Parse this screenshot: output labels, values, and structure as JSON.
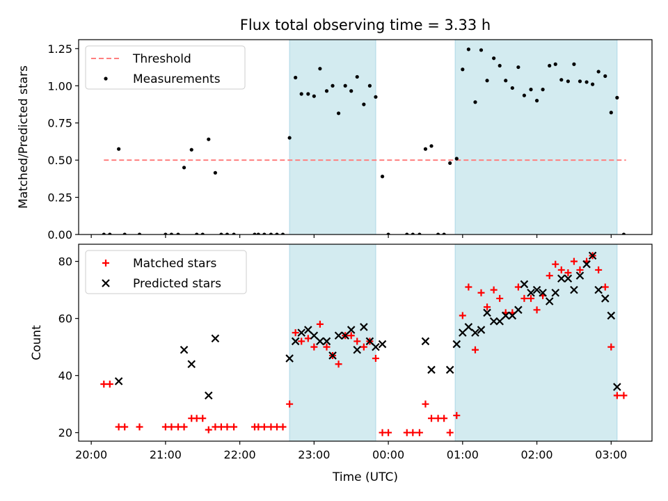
{
  "title": "Flux total observing time = 3.33 h",
  "chart_data": {
    "type": "scatter",
    "title": "Flux total observing time = 3.33 h",
    "xlabel": "Time (UTC)",
    "x_unit": "hours from 20:00 UTC (ticks wrap past midnight)",
    "xlim": [
      -0.17,
      7.55
    ],
    "xticks": [
      {
        "h": 0,
        "label": "20:00"
      },
      {
        "h": 1,
        "label": "21:00"
      },
      {
        "h": 2,
        "label": "22:00"
      },
      {
        "h": 3,
        "label": "23:00"
      },
      {
        "h": 4,
        "label": "00:00"
      },
      {
        "h": 5,
        "label": "01:00"
      },
      {
        "h": 6,
        "label": "02:00"
      },
      {
        "h": 7,
        "label": "03:00"
      }
    ],
    "shaded_intervals": [
      [
        2.67,
        3.83
      ],
      [
        4.9,
        7.08
      ]
    ],
    "shade_color": "#d3ebf0",
    "panels": [
      {
        "ylabel": "Matched/Predicted stars",
        "ylim": [
          0,
          1.31
        ],
        "yticks": [
          {
            "v": 0,
            "label": "0.00"
          },
          {
            "v": 0.25,
            "label": "0.25"
          },
          {
            "v": 0.5,
            "label": "0.50"
          },
          {
            "v": 0.75,
            "label": "0.75"
          },
          {
            "v": 1.0,
            "label": "1.00"
          },
          {
            "v": 1.25,
            "label": "1.25"
          }
        ],
        "legend": {
          "position": "upper-left",
          "entries": [
            "Threshold",
            "Measurements"
          ]
        },
        "threshold": {
          "name": "Threshold",
          "y": 0.5,
          "x": [
            0.17,
            7.2
          ],
          "color": "#ff7f7f"
        },
        "series": [
          {
            "name": "Measurements",
            "marker": "dot",
            "color": "#000000",
            "points": [
              [
                0.17,
                0.0
              ],
              [
                0.25,
                0.0
              ],
              [
                0.37,
                0.575
              ],
              [
                0.45,
                0.0
              ],
              [
                0.65,
                0.0
              ],
              [
                1.0,
                0.0
              ],
              [
                1.08,
                0.0
              ],
              [
                1.17,
                0.0
              ],
              [
                1.25,
                0.45
              ],
              [
                1.35,
                0.57
              ],
              [
                1.42,
                0.0
              ],
              [
                1.5,
                0.0
              ],
              [
                1.58,
                0.64
              ],
              [
                1.67,
                0.415
              ],
              [
                1.75,
                0.0
              ],
              [
                1.83,
                0.0
              ],
              [
                1.92,
                0.0
              ],
              [
                2.2,
                0.0
              ],
              [
                2.25,
                0.0
              ],
              [
                2.33,
                0.0
              ],
              [
                2.42,
                0.0
              ],
              [
                2.5,
                0.0
              ],
              [
                2.58,
                0.0
              ],
              [
                2.67,
                0.65
              ],
              [
                2.75,
                1.055
              ],
              [
                2.83,
                0.945
              ],
              [
                2.92,
                0.945
              ],
              [
                3.0,
                0.93
              ],
              [
                3.08,
                1.115
              ],
              [
                3.17,
                0.965
              ],
              [
                3.25,
                1.0
              ],
              [
                3.33,
                0.815
              ],
              [
                3.42,
                1.0
              ],
              [
                3.5,
                0.965
              ],
              [
                3.58,
                1.06
              ],
              [
                3.67,
                0.875
              ],
              [
                3.75,
                1.0
              ],
              [
                3.83,
                0.925
              ],
              [
                3.92,
                0.39
              ],
              [
                4.0,
                0.0
              ],
              [
                4.25,
                0.0
              ],
              [
                4.33,
                0.0
              ],
              [
                4.42,
                0.0
              ],
              [
                4.5,
                0.575
              ],
              [
                4.58,
                0.595
              ],
              [
                4.67,
                0.0
              ],
              [
                4.75,
                0.0
              ],
              [
                4.83,
                0.48
              ],
              [
                4.92,
                0.51
              ],
              [
                5.0,
                1.11
              ],
              [
                5.08,
                1.245
              ],
              [
                5.17,
                0.89
              ],
              [
                5.25,
                1.24
              ],
              [
                5.33,
                1.035
              ],
              [
                5.42,
                1.185
              ],
              [
                5.5,
                1.135
              ],
              [
                5.58,
                1.035
              ],
              [
                5.67,
                0.985
              ],
              [
                5.75,
                1.125
              ],
              [
                5.83,
                0.935
              ],
              [
                5.92,
                0.975
              ],
              [
                6.0,
                0.9
              ],
              [
                6.08,
                0.975
              ],
              [
                6.17,
                1.135
              ],
              [
                6.25,
                1.145
              ],
              [
                6.33,
                1.04
              ],
              [
                6.42,
                1.03
              ],
              [
                6.5,
                1.145
              ],
              [
                6.58,
                1.03
              ],
              [
                6.67,
                1.025
              ],
              [
                6.75,
                1.01
              ],
              [
                6.83,
                1.095
              ],
              [
                6.92,
                1.065
              ],
              [
                7.0,
                0.82
              ],
              [
                7.08,
                0.92
              ],
              [
                7.17,
                0.0
              ]
            ]
          }
        ]
      },
      {
        "ylabel": "Count",
        "ylim": [
          17,
          86
        ],
        "yticks": [
          {
            "v": 20,
            "label": "20"
          },
          {
            "v": 40,
            "label": "40"
          },
          {
            "v": 60,
            "label": "60"
          },
          {
            "v": 80,
            "label": "80"
          }
        ],
        "legend": {
          "position": "upper-left",
          "entries": [
            "Matched stars",
            "Predicted stars"
          ]
        },
        "series": [
          {
            "name": "Matched stars",
            "marker": "plus",
            "color": "#ff0000",
            "points": [
              [
                0.17,
                37
              ],
              [
                0.25,
                37
              ],
              [
                0.37,
                22
              ],
              [
                0.45,
                22
              ],
              [
                0.65,
                22
              ],
              [
                1.0,
                22
              ],
              [
                1.08,
                22
              ],
              [
                1.17,
                22
              ],
              [
                1.25,
                22
              ],
              [
                1.35,
                25
              ],
              [
                1.42,
                25
              ],
              [
                1.5,
                25
              ],
              [
                1.58,
                21
              ],
              [
                1.67,
                22
              ],
              [
                1.75,
                22
              ],
              [
                1.83,
                22
              ],
              [
                1.92,
                22
              ],
              [
                2.2,
                22
              ],
              [
                2.25,
                22
              ],
              [
                2.33,
                22
              ],
              [
                2.42,
                22
              ],
              [
                2.5,
                22
              ],
              [
                2.58,
                22
              ],
              [
                2.67,
                30
              ],
              [
                2.75,
                55
              ],
              [
                2.83,
                52
              ],
              [
                2.92,
                53
              ],
              [
                3.0,
                50
              ],
              [
                3.08,
                58
              ],
              [
                3.17,
                50
              ],
              [
                3.25,
                47
              ],
              [
                3.33,
                44
              ],
              [
                3.42,
                54
              ],
              [
                3.5,
                54
              ],
              [
                3.58,
                52
              ],
              [
                3.67,
                50
              ],
              [
                3.75,
                52
              ],
              [
                3.83,
                46
              ],
              [
                3.92,
                20
              ],
              [
                4.0,
                20
              ],
              [
                4.25,
                20
              ],
              [
                4.33,
                20
              ],
              [
                4.42,
                20
              ],
              [
                4.5,
                30
              ],
              [
                4.58,
                25
              ],
              [
                4.67,
                25
              ],
              [
                4.75,
                25
              ],
              [
                4.83,
                20
              ],
              [
                4.92,
                26
              ],
              [
                5.0,
                61
              ],
              [
                5.08,
                71
              ],
              [
                5.17,
                49
              ],
              [
                5.25,
                69
              ],
              [
                5.33,
                64
              ],
              [
                5.42,
                70
              ],
              [
                5.5,
                67
              ],
              [
                5.58,
                62
              ],
              [
                5.67,
                62
              ],
              [
                5.75,
                71
              ],
              [
                5.83,
                67
              ],
              [
                5.92,
                67
              ],
              [
                6.0,
                63
              ],
              [
                6.08,
                68
              ],
              [
                6.17,
                75
              ],
              [
                6.25,
                79
              ],
              [
                6.33,
                77
              ],
              [
                6.42,
                76
              ],
              [
                6.5,
                80
              ],
              [
                6.58,
                77
              ],
              [
                6.67,
                80
              ],
              [
                6.75,
                82
              ],
              [
                6.83,
                77
              ],
              [
                6.92,
                71
              ],
              [
                7.0,
                50
              ],
              [
                7.08,
                33
              ],
              [
                7.17,
                33
              ]
            ]
          },
          {
            "name": "Predicted stars",
            "marker": "x",
            "color": "#000000",
            "points": [
              [
                0.37,
                38
              ],
              [
                1.25,
                49
              ],
              [
                1.35,
                44
              ],
              [
                1.58,
                33
              ],
              [
                1.67,
                53
              ],
              [
                2.67,
                46
              ],
              [
                2.75,
                52
              ],
              [
                2.83,
                55
              ],
              [
                2.92,
                56
              ],
              [
                3.0,
                54
              ],
              [
                3.08,
                52
              ],
              [
                3.17,
                52
              ],
              [
                3.25,
                47
              ],
              [
                3.33,
                54
              ],
              [
                3.42,
                54
              ],
              [
                3.5,
                56
              ],
              [
                3.58,
                49
              ],
              [
                3.67,
                57
              ],
              [
                3.75,
                52
              ],
              [
                3.83,
                50
              ],
              [
                3.92,
                51
              ],
              [
                4.5,
                52
              ],
              [
                4.58,
                42
              ],
              [
                4.83,
                42
              ],
              [
                4.92,
                51
              ],
              [
                5.0,
                55
              ],
              [
                5.08,
                57
              ],
              [
                5.17,
                55
              ],
              [
                5.25,
                56
              ],
              [
                5.33,
                62
              ],
              [
                5.42,
                59
              ],
              [
                5.5,
                59
              ],
              [
                5.58,
                61
              ],
              [
                5.67,
                61
              ],
              [
                5.75,
                63
              ],
              [
                5.83,
                72
              ],
              [
                5.92,
                69
              ],
              [
                6.0,
                70
              ],
              [
                6.08,
                69
              ],
              [
                6.17,
                66
              ],
              [
                6.25,
                69
              ],
              [
                6.33,
                74
              ],
              [
                6.42,
                74
              ],
              [
                6.5,
                70
              ],
              [
                6.58,
                75
              ],
              [
                6.67,
                79
              ],
              [
                6.75,
                82
              ],
              [
                6.83,
                70
              ],
              [
                6.92,
                67
              ],
              [
                7.0,
                61
              ],
              [
                7.08,
                36
              ]
            ]
          }
        ]
      }
    ]
  }
}
